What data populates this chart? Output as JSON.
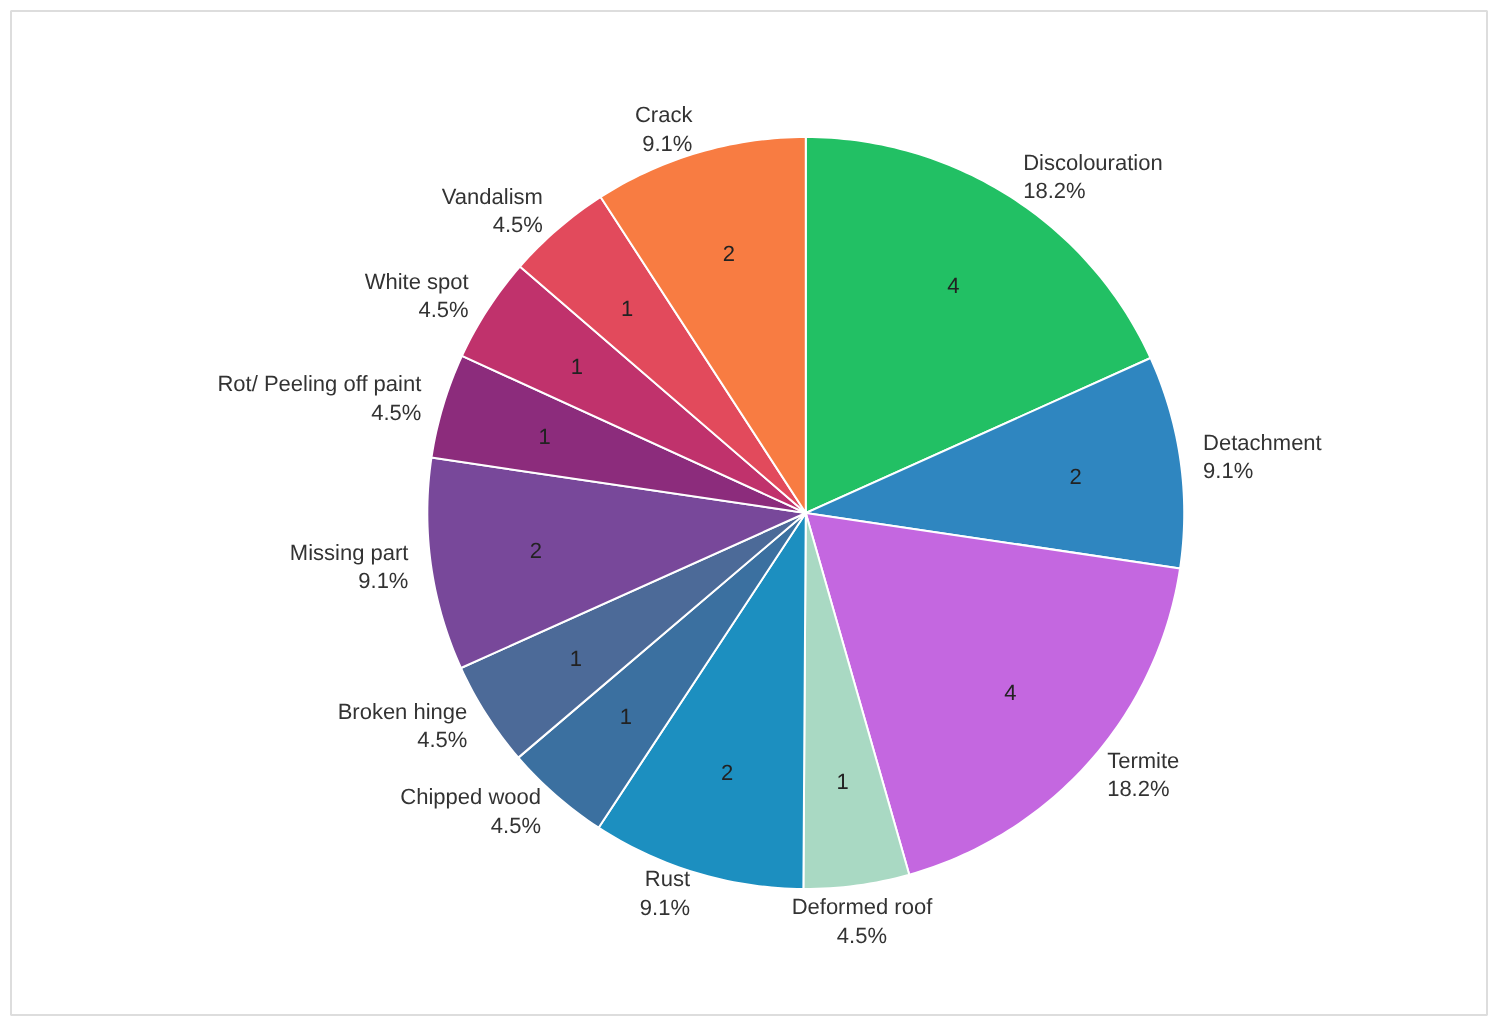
{
  "chart_data": {
    "type": "pie",
    "categories": [
      "Discolouration",
      "Detachment",
      "Termite",
      "Deformed roof",
      "Rust",
      "Chipped wood",
      "Broken hinge",
      "Missing part",
      "Rot/ Peeling off paint",
      "White spot",
      "Vandalism",
      "Crack"
    ],
    "values": [
      18.2,
      9.1,
      18.2,
      4.5,
      9.1,
      4.5,
      4.5,
      9.1,
      4.5,
      4.5,
      4.5,
      9.1
    ],
    "value_labels": [
      "18.2%",
      "9.1%",
      "18.2%",
      "4.5%",
      "9.1%",
      "4.5%",
      "4.5%",
      "9.1%",
      "4.5%",
      "4.5%",
      "4.5%",
      "9.1%"
    ],
    "colors": [
      "#22c064",
      "#2f86c0",
      "#c467e0",
      "#a9d9c3",
      "#1c8fc0",
      "#3b70a0",
      "#4c6a98",
      "#78489a",
      "#8c2c7c",
      "#c0326c",
      "#e24a5c",
      "#f87c42"
    ],
    "annotations": [
      {
        "text": "4",
        "x": "Discolouration"
      },
      {
        "text": "2",
        "x": "Detachment"
      },
      {
        "text": "4",
        "x": "Termite"
      },
      {
        "text": "1",
        "x": "Deformed roof"
      },
      {
        "text": "2",
        "x": "Rust"
      },
      {
        "text": "1",
        "x": "Chipped wood"
      },
      {
        "text": "1",
        "x": "Broken hinge"
      },
      {
        "text": "2",
        "x": "Missing part"
      },
      {
        "text": "1",
        "x": "Rot/ Peeling off paint"
      },
      {
        "text": "1",
        "x": "White spot"
      },
      {
        "text": "1",
        "x": "Vandalism"
      },
      {
        "text": "2",
        "x": "Crack"
      }
    ]
  }
}
